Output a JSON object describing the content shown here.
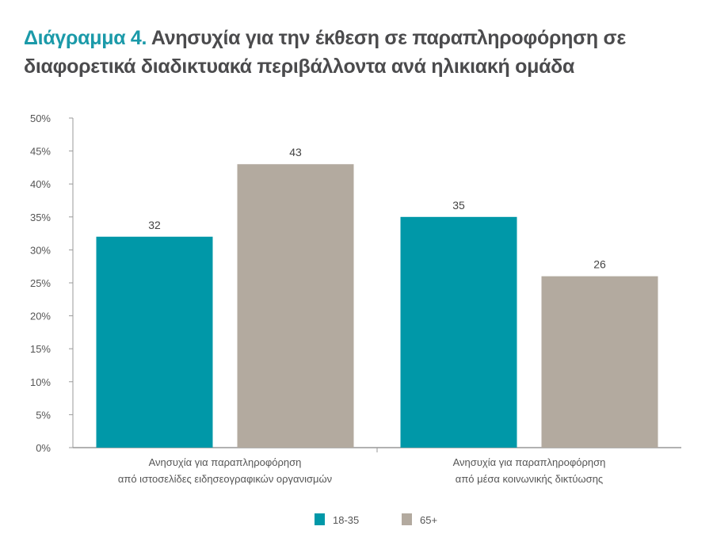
{
  "chart_data": {
    "type": "bar",
    "title_prefix": "Διάγραμμα 4.",
    "title": "Ανησυχία για την έκθεση σε παραπληροφόρηση σε διαφορετικά διαδικτυακά περιβάλλοντα ανά ηλικιακή ομάδα",
    "categories": [
      [
        "Ανησυχία για παραπληροφόρηση",
        "από ιστοσελίδες ειδησεογραφικών οργανισμών"
      ],
      [
        "Ανησυχία για παραπληροφόρηση",
        "από μέσα κοινωνικής δικτύωσης"
      ]
    ],
    "series": [
      {
        "name": "18-35",
        "values": [
          32,
          35
        ],
        "color": "#0098a8"
      },
      {
        "name": "65+",
        "values": [
          43,
          26
        ],
        "color": "#b3aa9f"
      }
    ],
    "ylim": [
      0,
      50
    ],
    "yticks": [
      0,
      5,
      10,
      15,
      20,
      25,
      30,
      35,
      40,
      45,
      50
    ],
    "ytick_labels": [
      "0%",
      "5%",
      "10%",
      "15%",
      "20%",
      "25%",
      "30%",
      "35%",
      "40%",
      "45%",
      "50%"
    ],
    "legend": "bottom-center",
    "grid": false
  }
}
